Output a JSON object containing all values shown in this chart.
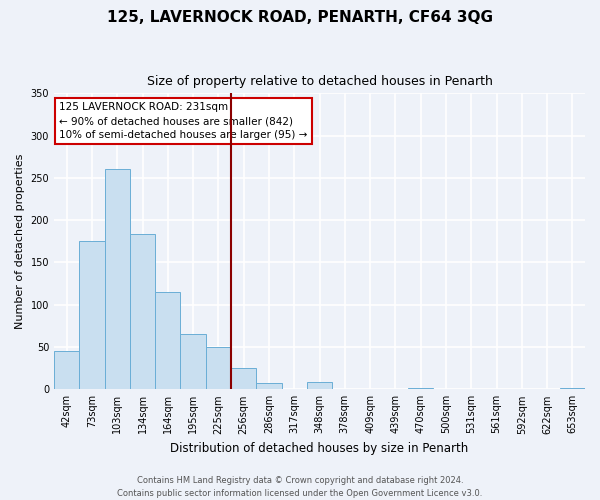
{
  "title": "125, LAVERNOCK ROAD, PENARTH, CF64 3QG",
  "subtitle": "Size of property relative to detached houses in Penarth",
  "xlabel": "Distribution of detached houses by size in Penarth",
  "ylabel": "Number of detached properties",
  "categories": [
    "42sqm",
    "73sqm",
    "103sqm",
    "134sqm",
    "164sqm",
    "195sqm",
    "225sqm",
    "256sqm",
    "286sqm",
    "317sqm",
    "348sqm",
    "378sqm",
    "409sqm",
    "439sqm",
    "470sqm",
    "500sqm",
    "531sqm",
    "561sqm",
    "592sqm",
    "622sqm",
    "653sqm"
  ],
  "values": [
    45,
    175,
    260,
    184,
    115,
    65,
    50,
    25,
    8,
    0,
    9,
    0,
    0,
    0,
    2,
    0,
    0,
    0,
    0,
    0,
    2
  ],
  "bar_color": "#c9dff0",
  "bar_edge_color": "#6aaed6",
  "background_color": "#eef2f9",
  "grid_color": "#ffffff",
  "vline_x": 6.5,
  "vline_color": "#8b0000",
  "ylim": [
    0,
    350
  ],
  "yticks": [
    0,
    50,
    100,
    150,
    200,
    250,
    300,
    350
  ],
  "annotation_title": "125 LAVERNOCK ROAD: 231sqm",
  "annotation_line1": "← 90% of detached houses are smaller (842)",
  "annotation_line2": "10% of semi-detached houses are larger (95) →",
  "annotation_box_color": "#ffffff",
  "annotation_box_edge": "#cc0000",
  "footer_line1": "Contains HM Land Registry data © Crown copyright and database right 2024.",
  "footer_line2": "Contains public sector information licensed under the Open Government Licence v3.0.",
  "title_fontsize": 11,
  "subtitle_fontsize": 9,
  "xlabel_fontsize": 8.5,
  "ylabel_fontsize": 8,
  "tick_fontsize": 7,
  "footer_fontsize": 6,
  "annotation_fontsize": 7.5
}
